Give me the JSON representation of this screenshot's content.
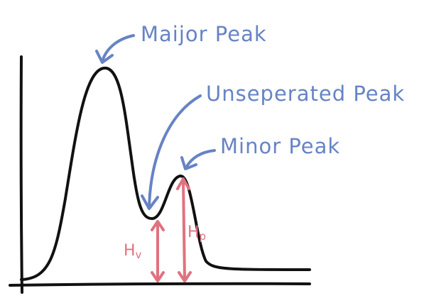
{
  "annotations": {
    "major_peak": "Maijor Peak",
    "unseparated_peak": "Unseperated Peak",
    "minor_peak": "Minor Peak"
  },
  "heights": {
    "valley": {
      "symbol": "H",
      "subscript": "v"
    },
    "peak": {
      "symbol": "H",
      "subscript": "p"
    }
  }
}
